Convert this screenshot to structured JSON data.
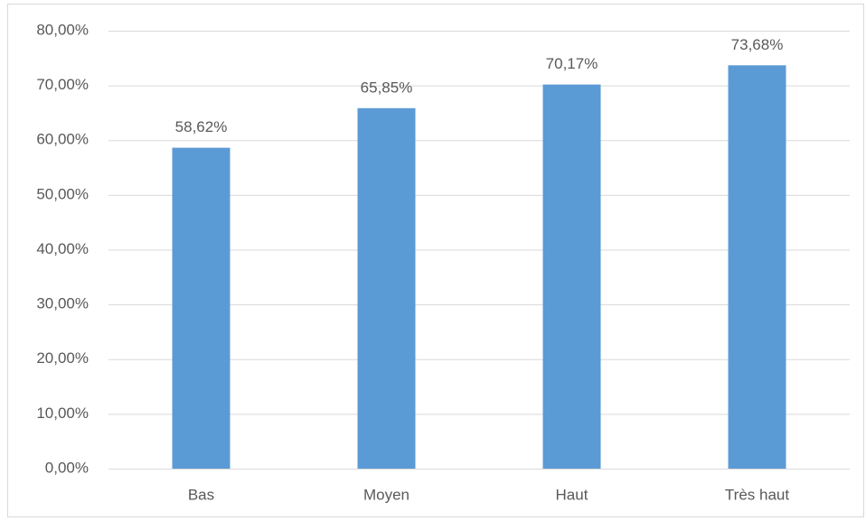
{
  "chart_data": {
    "type": "bar",
    "categories": [
      "Bas",
      "Moyen",
      "Haut",
      "Très haut"
    ],
    "values": [
      58.62,
      65.85,
      70.17,
      73.68
    ],
    "value_labels": [
      "58,62%",
      "65,85%",
      "70,17%",
      "73,68%"
    ],
    "color": "#5b9bd5",
    "ylim": [
      0,
      80
    ],
    "yticks": [
      {
        "value": 0,
        "label": "0,00%"
      },
      {
        "value": 10,
        "label": "10,00%"
      },
      {
        "value": 20,
        "label": "20,00%"
      },
      {
        "value": 30,
        "label": "30,00%"
      },
      {
        "value": 40,
        "label": "40,00%"
      },
      {
        "value": 50,
        "label": "50,00%"
      },
      {
        "value": 60,
        "label": "60,00%"
      },
      {
        "value": 70,
        "label": "70,00%"
      },
      {
        "value": 80,
        "label": "80,00%"
      }
    ],
    "grid": true
  }
}
